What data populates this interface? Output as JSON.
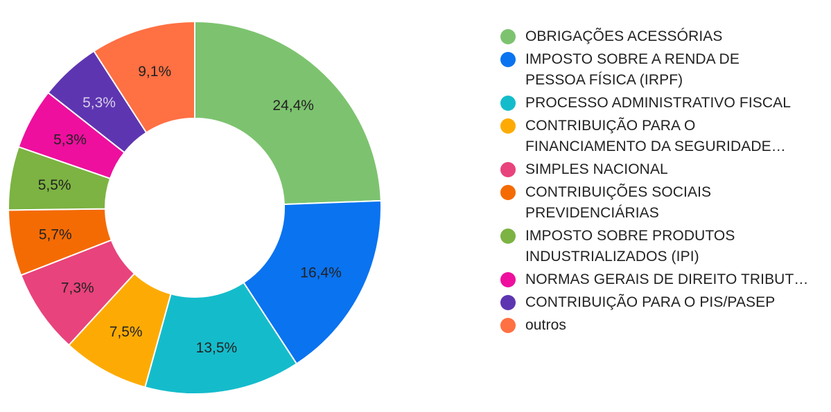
{
  "chart_data": {
    "type": "pie",
    "donut": true,
    "legend_position": "right",
    "categories": [
      "OBRIGAÇÕES ACESSÓRIAS",
      "IMPOSTO SOBRE A RENDA DE\nPESSOA FÍSICA (IRPF)",
      "PROCESSO ADMINISTRATIVO FISCAL",
      "CONTRIBUIÇÃO PARA O\nFINANCIAMENTO DA SEGURIDADE…",
      "SIMPLES NACIONAL",
      "CONTRIBUIÇÕES SOCIAIS\nPREVIDENCIÁRIAS",
      "IMPOSTO SOBRE PRODUTOS\nINDUSTRIALIZADOS (IPI)",
      "NORMAS GERAIS DE DIREITO TRIBUT…",
      "CONTRIBUIÇÃO PARA O PIS/PASEP",
      "outros"
    ],
    "values": [
      24.4,
      16.4,
      13.5,
      7.5,
      7.3,
      5.7,
      5.5,
      5.3,
      5.3,
      9.1
    ],
    "data_labels": [
      "24,4%",
      "16,4%",
      "13,5%",
      "7,5%",
      "7,3%",
      "5,7%",
      "5,5%",
      "5,3%",
      "5,3%",
      "9,1%"
    ],
    "colors": [
      "#7dc36f",
      "#0a73f0",
      "#14bccb",
      "#fdab04",
      "#e8437c",
      "#f46b04",
      "#7cb342",
      "#ee0f9e",
      "#5e35b1",
      "#ff7043"
    ],
    "label_colors": [
      "#222222",
      "#222222",
      "#222222",
      "#222222",
      "#222222",
      "#222222",
      "#222222",
      "#222222",
      "#d6d0ea",
      "#222222"
    ]
  }
}
